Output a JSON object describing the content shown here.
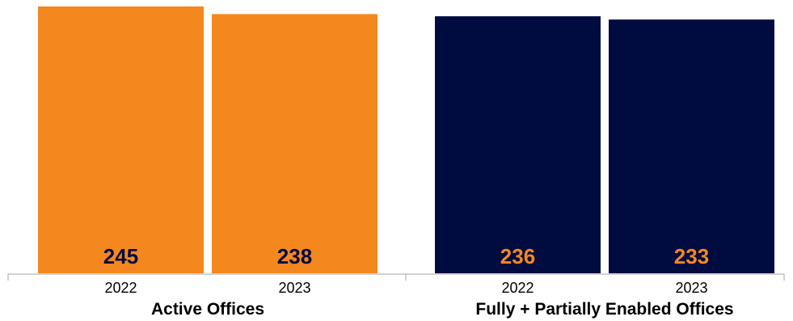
{
  "chart_data": {
    "type": "bar",
    "groups": [
      {
        "name": "Active Offices",
        "categories": [
          "2022",
          "2023"
        ],
        "values": [
          245,
          238
        ],
        "bar_color": "#F5871F",
        "label_color": "#000B40"
      },
      {
        "name": "Fully + Partially Enabled Offices",
        "categories": [
          "2022",
          "2023"
        ],
        "values": [
          236,
          233
        ],
        "bar_color": "#000B40",
        "label_color": "#F5871F"
      }
    ],
    "title": "",
    "xlabel": "",
    "ylabel": "",
    "ylim": [
      0,
      245
    ],
    "grid": false,
    "legend": "none"
  }
}
